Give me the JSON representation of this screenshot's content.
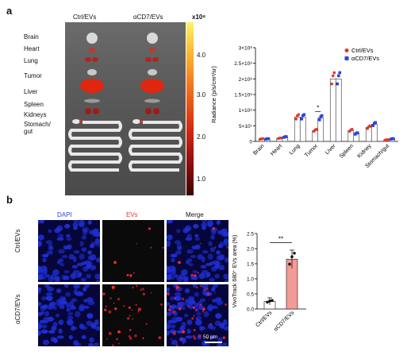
{
  "panel_a": {
    "letter": "a",
    "group_labels": [
      "Ctrl/EVs",
      "αCD7/EVs"
    ],
    "organ_labels": [
      "Brain",
      "Heart",
      "Lung",
      "Tumor",
      "Liver",
      "Spleen",
      "Kidneys",
      "Stomach/",
      "gut"
    ],
    "colorbar": {
      "exponent_label": "x10⁸",
      "ticks": [
        "4.0",
        "3.0",
        "2.0",
        "1.0"
      ]
    }
  },
  "panel_b": {
    "letter": "b",
    "column_headers": [
      "DAPI",
      "EVs",
      "Merge"
    ],
    "row_labels": [
      "Ctrl/EVs",
      "αCD7/EVs"
    ],
    "scale_bar": "50 μm"
  },
  "chart_data": [
    {
      "type": "bar",
      "ylabel": "Radiance (p/s/cm²/sr)",
      "y_ticks": [
        "0",
        "5×10⁷",
        "1×10⁸",
        "1.5×10⁸",
        "2×10⁸",
        "2.5×10⁸",
        "3×10⁸"
      ],
      "ylim": [
        0,
        300000000.0
      ],
      "categories": [
        "Brain",
        "Heart",
        "Lung",
        "Tumor",
        "Liver",
        "Spleen",
        "Kidney",
        "Stomach/gut"
      ],
      "series": [
        {
          "name": "Ctrl/EVs",
          "color": "#e8352c",
          "values": [
            8000000.0,
            10000000.0,
            78000000.0,
            35000000.0,
            200000000.0,
            35000000.0,
            45000000.0,
            5000000.0
          ]
        },
        {
          "name": "αCD7/EVs",
          "color": "#2a45e0",
          "values": [
            8000000.0,
            14000000.0,
            78000000.0,
            75000000.0,
            200000000.0,
            25000000.0,
            55000000.0,
            8000000.0
          ]
        }
      ],
      "annotation": "*",
      "legend": "top-right"
    },
    {
      "type": "bar",
      "ylabel": "VivoTrack 680⁺ EVs area (%)",
      "y_ticks": [
        "0.0",
        "0.5",
        "1.0",
        "1.5",
        "2.0",
        "2.5"
      ],
      "ylim": [
        0,
        2.5
      ],
      "categories": [
        "Ctrl/EVs",
        "αCD7/EVs"
      ],
      "values": [
        0.25,
        1.65
      ],
      "colors": [
        "#ffffff",
        "#f49a96"
      ],
      "annotation": "**"
    }
  ]
}
